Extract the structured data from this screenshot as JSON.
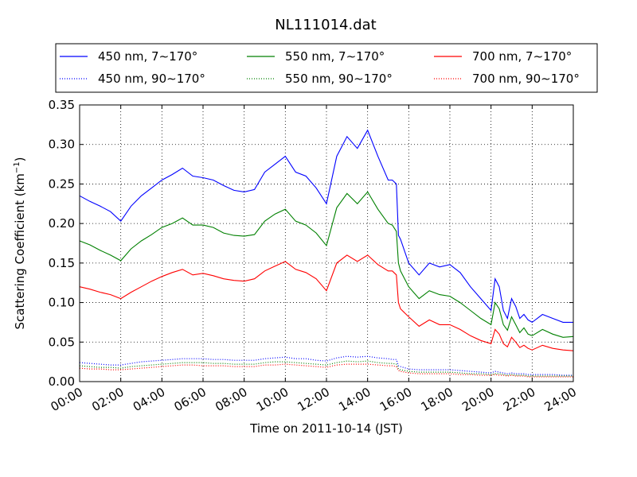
{
  "chart_data": {
    "type": "line",
    "title": "NL111014.dat",
    "xlabel": "Time on 2011-10-14 (JST)",
    "ylabel_main": "Scattering Coefficient (km",
    "ylabel_sup": "−1",
    "ylabel_end": ")",
    "xlim": [
      0,
      24
    ],
    "ylim": [
      0,
      0.35
    ],
    "x_ticks": [
      0,
      2,
      4,
      6,
      8,
      10,
      12,
      14,
      16,
      18,
      20,
      22,
      24
    ],
    "x_tick_labels": [
      "00:00",
      "02:00",
      "04:00",
      "06:00",
      "08:00",
      "10:00",
      "12:00",
      "14:00",
      "16:00",
      "18:00",
      "20:00",
      "22:00",
      "24:00"
    ],
    "y_ticks": [
      0,
      0.05,
      0.1,
      0.15,
      0.2,
      0.25,
      0.3,
      0.35
    ],
    "y_tick_labels": [
      "0.00",
      "0.05",
      "0.10",
      "0.15",
      "0.20",
      "0.25",
      "0.30",
      "0.35"
    ],
    "grid": true,
    "legend_position": "top",
    "x": [
      0,
      0.5,
      1,
      1.5,
      2,
      2.5,
      3,
      3.5,
      4,
      4.5,
      5,
      5.5,
      6,
      6.5,
      7,
      7.5,
      8,
      8.5,
      9,
      9.5,
      10,
      10.5,
      11,
      11.5,
      12,
      12.5,
      13,
      13.5,
      14,
      14.5,
      15,
      15.2,
      15.4,
      15.5,
      15.6,
      16,
      16.5,
      17,
      17.5,
      18,
      18.5,
      19,
      19.5,
      20,
      20.2,
      20.4,
      20.6,
      20.8,
      21,
      21.2,
      21.4,
      21.6,
      21.8,
      22,
      22.5,
      23,
      23.5,
      24
    ],
    "series": [
      {
        "name": "450 nm, 7∼170°",
        "color": "#0000ff",
        "style": "solid",
        "values": [
          0.235,
          0.228,
          0.222,
          0.215,
          0.203,
          0.222,
          0.235,
          0.245,
          0.255,
          0.262,
          0.27,
          0.26,
          0.258,
          0.255,
          0.248,
          0.242,
          0.24,
          0.243,
          0.265,
          0.275,
          0.285,
          0.265,
          0.26,
          0.245,
          0.225,
          0.285,
          0.31,
          0.295,
          0.318,
          0.285,
          0.255,
          0.255,
          0.25,
          0.185,
          0.18,
          0.15,
          0.135,
          0.15,
          0.145,
          0.148,
          0.138,
          0.12,
          0.105,
          0.09,
          0.13,
          0.12,
          0.09,
          0.08,
          0.105,
          0.095,
          0.08,
          0.085,
          0.078,
          0.075,
          0.085,
          0.08,
          0.075,
          0.075
        ]
      },
      {
        "name": "550 nm, 7∼170°",
        "color": "#008000",
        "style": "solid",
        "values": [
          0.178,
          0.173,
          0.166,
          0.16,
          0.153,
          0.168,
          0.178,
          0.186,
          0.195,
          0.2,
          0.207,
          0.198,
          0.198,
          0.195,
          0.188,
          0.185,
          0.184,
          0.186,
          0.203,
          0.212,
          0.218,
          0.203,
          0.198,
          0.188,
          0.172,
          0.22,
          0.238,
          0.225,
          0.24,
          0.218,
          0.2,
          0.198,
          0.19,
          0.15,
          0.14,
          0.12,
          0.105,
          0.115,
          0.11,
          0.108,
          0.1,
          0.09,
          0.08,
          0.072,
          0.1,
          0.092,
          0.072,
          0.065,
          0.082,
          0.072,
          0.062,
          0.068,
          0.06,
          0.058,
          0.066,
          0.06,
          0.056,
          0.057
        ]
      },
      {
        "name": "700 nm, 7∼170°",
        "color": "#ff0000",
        "style": "solid",
        "values": [
          0.12,
          0.117,
          0.113,
          0.11,
          0.105,
          0.113,
          0.12,
          0.127,
          0.133,
          0.138,
          0.142,
          0.135,
          0.137,
          0.134,
          0.13,
          0.128,
          0.127,
          0.13,
          0.14,
          0.146,
          0.152,
          0.142,
          0.138,
          0.13,
          0.115,
          0.15,
          0.16,
          0.152,
          0.16,
          0.148,
          0.14,
          0.14,
          0.135,
          0.1,
          0.092,
          0.082,
          0.07,
          0.078,
          0.072,
          0.072,
          0.066,
          0.058,
          0.052,
          0.048,
          0.066,
          0.06,
          0.048,
          0.044,
          0.056,
          0.05,
          0.043,
          0.046,
          0.042,
          0.04,
          0.046,
          0.042,
          0.04,
          0.039
        ]
      },
      {
        "name": "450 nm, 90∼170°",
        "color": "#0000ff",
        "style": "dotted",
        "values": [
          0.024,
          0.023,
          0.022,
          0.021,
          0.021,
          0.023,
          0.025,
          0.026,
          0.027,
          0.028,
          0.029,
          0.029,
          0.029,
          0.028,
          0.028,
          0.027,
          0.027,
          0.027,
          0.029,
          0.03,
          0.031,
          0.029,
          0.029,
          0.027,
          0.026,
          0.03,
          0.032,
          0.031,
          0.032,
          0.03,
          0.029,
          0.028,
          0.028,
          0.02,
          0.019,
          0.016,
          0.015,
          0.015,
          0.015,
          0.015,
          0.014,
          0.013,
          0.012,
          0.011,
          0.013,
          0.012,
          0.011,
          0.01,
          0.011,
          0.01,
          0.01,
          0.01,
          0.009,
          0.009,
          0.009,
          0.009,
          0.008,
          0.008
        ]
      },
      {
        "name": "550 nm, 90∼170°",
        "color": "#008000",
        "style": "dotted",
        "values": [
          0.02,
          0.019,
          0.018,
          0.018,
          0.017,
          0.019,
          0.02,
          0.021,
          0.022,
          0.023,
          0.024,
          0.024,
          0.024,
          0.023,
          0.023,
          0.022,
          0.022,
          0.022,
          0.024,
          0.025,
          0.025,
          0.024,
          0.023,
          0.022,
          0.021,
          0.024,
          0.026,
          0.025,
          0.026,
          0.024,
          0.023,
          0.023,
          0.022,
          0.016,
          0.015,
          0.013,
          0.012,
          0.012,
          0.012,
          0.012,
          0.011,
          0.01,
          0.01,
          0.009,
          0.01,
          0.01,
          0.009,
          0.008,
          0.009,
          0.008,
          0.008,
          0.008,
          0.007,
          0.007,
          0.007,
          0.007,
          0.007,
          0.007
        ]
      },
      {
        "name": "700 nm, 90∼170°",
        "color": "#ff0000",
        "style": "dotted",
        "values": [
          0.017,
          0.016,
          0.016,
          0.015,
          0.015,
          0.016,
          0.017,
          0.018,
          0.019,
          0.02,
          0.021,
          0.021,
          0.02,
          0.02,
          0.02,
          0.019,
          0.019,
          0.019,
          0.021,
          0.021,
          0.022,
          0.021,
          0.02,
          0.019,
          0.018,
          0.021,
          0.022,
          0.022,
          0.022,
          0.021,
          0.02,
          0.02,
          0.019,
          0.014,
          0.013,
          0.011,
          0.01,
          0.01,
          0.01,
          0.01,
          0.009,
          0.009,
          0.008,
          0.008,
          0.009,
          0.008,
          0.008,
          0.007,
          0.008,
          0.007,
          0.007,
          0.007,
          0.006,
          0.006,
          0.006,
          0.006,
          0.006,
          0.006
        ]
      }
    ]
  }
}
